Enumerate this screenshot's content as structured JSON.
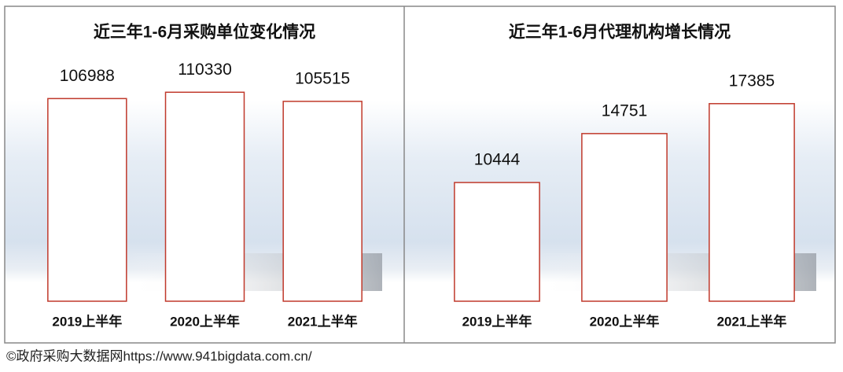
{
  "chart_data": [
    {
      "type": "bar",
      "title": "近三年1-6月采购单位变化情况",
      "categories": [
        "2019上半年",
        "2020上半年",
        "2021上半年"
      ],
      "values": [
        106988,
        110330,
        105515
      ],
      "color": "#c0392b",
      "ylim": [
        0,
        120000
      ]
    },
    {
      "type": "bar",
      "title": "近三年1-6月代理机构增长情况",
      "categories": [
        "2019上半年",
        "2020上半年",
        "2021上半年"
      ],
      "values": [
        10444,
        14751,
        17385
      ],
      "color": "#c0392b",
      "ylim": [
        0,
        20000
      ]
    }
  ],
  "footer": "©政府采购大数据网https://www.941bigdata.com.cn/"
}
